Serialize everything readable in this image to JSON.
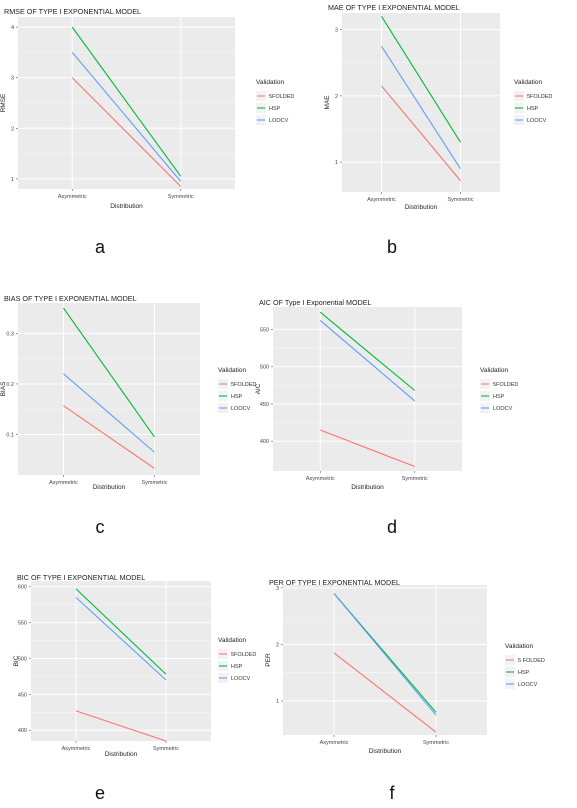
{
  "legend_title": "Validation",
  "series_colors": [
    "#F8766D",
    "#00BA38",
    "#619CFF"
  ],
  "chart_data": [
    {
      "type": "line",
      "panel_label": "a",
      "title": "RMSE OF TYPE I EXPONENTIAL MODEL",
      "xlabel": "Distribution",
      "ylabel": "RMSE",
      "categories": [
        "Asymmetric",
        "Symmetric"
      ],
      "y_ticks": [
        "1",
        "2",
        "3",
        "4"
      ],
      "y_tick_values": [
        1,
        2,
        3,
        4
      ],
      "ylim": [
        0.8,
        4.2
      ],
      "grid": true,
      "legend_position": "right",
      "legend_title": "Validation",
      "series": [
        {
          "name": "5FOLDED",
          "values": [
            3.0,
            0.85
          ]
        },
        {
          "name": "HSP",
          "values": [
            4.0,
            1.05
          ]
        },
        {
          "name": "LOOCV",
          "values": [
            3.5,
            0.95
          ]
        }
      ]
    },
    {
      "type": "line",
      "panel_label": "b",
      "title": "MAE OF TYPE I EXPONENTIAL MODEL",
      "xlabel": "Distribution",
      "ylabel": "MAE",
      "categories": [
        "Asymmetric",
        "Symmetric"
      ],
      "y_ticks": [
        "1",
        "2",
        "3"
      ],
      "y_tick_values": [
        1,
        2,
        3
      ],
      "ylim": [
        0.55,
        3.25
      ],
      "grid": true,
      "legend_position": "right",
      "legend_title": "Validation",
      "series": [
        {
          "name": "5FOLDED",
          "values": [
            2.15,
            0.72
          ]
        },
        {
          "name": "HSP",
          "values": [
            3.2,
            1.3
          ]
        },
        {
          "name": "LOOCV",
          "values": [
            2.75,
            0.9
          ]
        }
      ]
    },
    {
      "type": "line",
      "panel_label": "c",
      "title": "BIAS OF TYPE I EXPONENTIAL MODEL",
      "xlabel": "Distribution",
      "ylabel": "BIAS",
      "categories": [
        "Asymmetric",
        "Symmetric"
      ],
      "y_ticks": [
        "0.1",
        "0.2",
        "0.3"
      ],
      "y_tick_values": [
        0.1,
        0.2,
        0.3
      ],
      "ylim": [
        0.02,
        0.36
      ],
      "grid": true,
      "legend_position": "right",
      "legend_title": "Validation",
      "series": [
        {
          "name": "5FOLDED",
          "values": [
            0.157,
            0.033
          ]
        },
        {
          "name": "HSP",
          "values": [
            0.35,
            0.095
          ]
        },
        {
          "name": "LOOCV",
          "values": [
            0.22,
            0.065
          ]
        }
      ]
    },
    {
      "type": "line",
      "panel_label": "d",
      "title": "AIC OF Type I Exponential MODEL",
      "xlabel": "Distribution",
      "ylabel": "AIC",
      "categories": [
        "Asymmetric",
        "Symmetric"
      ],
      "y_ticks": [
        "400",
        "450",
        "500",
        "550"
      ],
      "y_tick_values": [
        400,
        450,
        500,
        550
      ],
      "ylim": [
        360,
        580
      ],
      "grid": true,
      "legend_position": "right",
      "legend_title": "Validation",
      "series": [
        {
          "name": "5FOLDED",
          "values": [
            415,
            366
          ]
        },
        {
          "name": "HSP",
          "values": [
            573,
            468
          ]
        },
        {
          "name": "LOOCV",
          "values": [
            562,
            454
          ]
        }
      ]
    },
    {
      "type": "line",
      "panel_label": "e",
      "title": "BIC OF TYPE I EXPONENTIAL MODEL",
      "xlabel": "Distribution",
      "ylabel": "BIC",
      "categories": [
        "Asymmetric",
        "Symmetric"
      ],
      "y_ticks": [
        "400",
        "450",
        "500",
        "550",
        "600"
      ],
      "y_tick_values": [
        400,
        450,
        500,
        550,
        600
      ],
      "ylim": [
        385,
        608
      ],
      "grid": true,
      "legend_position": "right",
      "legend_title": "Validation",
      "series": [
        {
          "name": "5FOLDED",
          "values": [
            427,
            385
          ]
        },
        {
          "name": "HSP",
          "values": [
            597,
            478
          ]
        },
        {
          "name": "LOOCV",
          "values": [
            585,
            470
          ]
        }
      ]
    },
    {
      "type": "line",
      "panel_label": "f",
      "title": "PER OF TYPE I EXPONENTIAL MODEL",
      "xlabel": "Distribution",
      "ylabel": "PER",
      "categories": [
        "Asymmetric",
        "Symmetric"
      ],
      "y_ticks": [
        "1",
        "2",
        "3"
      ],
      "y_tick_values": [
        1,
        2,
        3
      ],
      "ylim": [
        0.4,
        3.05
      ],
      "grid": true,
      "legend_position": "right",
      "legend_title": "Validation",
      "series": [
        {
          "name": "5 FOLDED",
          "values": [
            1.85,
            0.45
          ]
        },
        {
          "name": "HSP",
          "values": [
            2.9,
            0.8
          ]
        },
        {
          "name": "LOOCV",
          "values": [
            2.9,
            0.75
          ]
        }
      ]
    }
  ]
}
